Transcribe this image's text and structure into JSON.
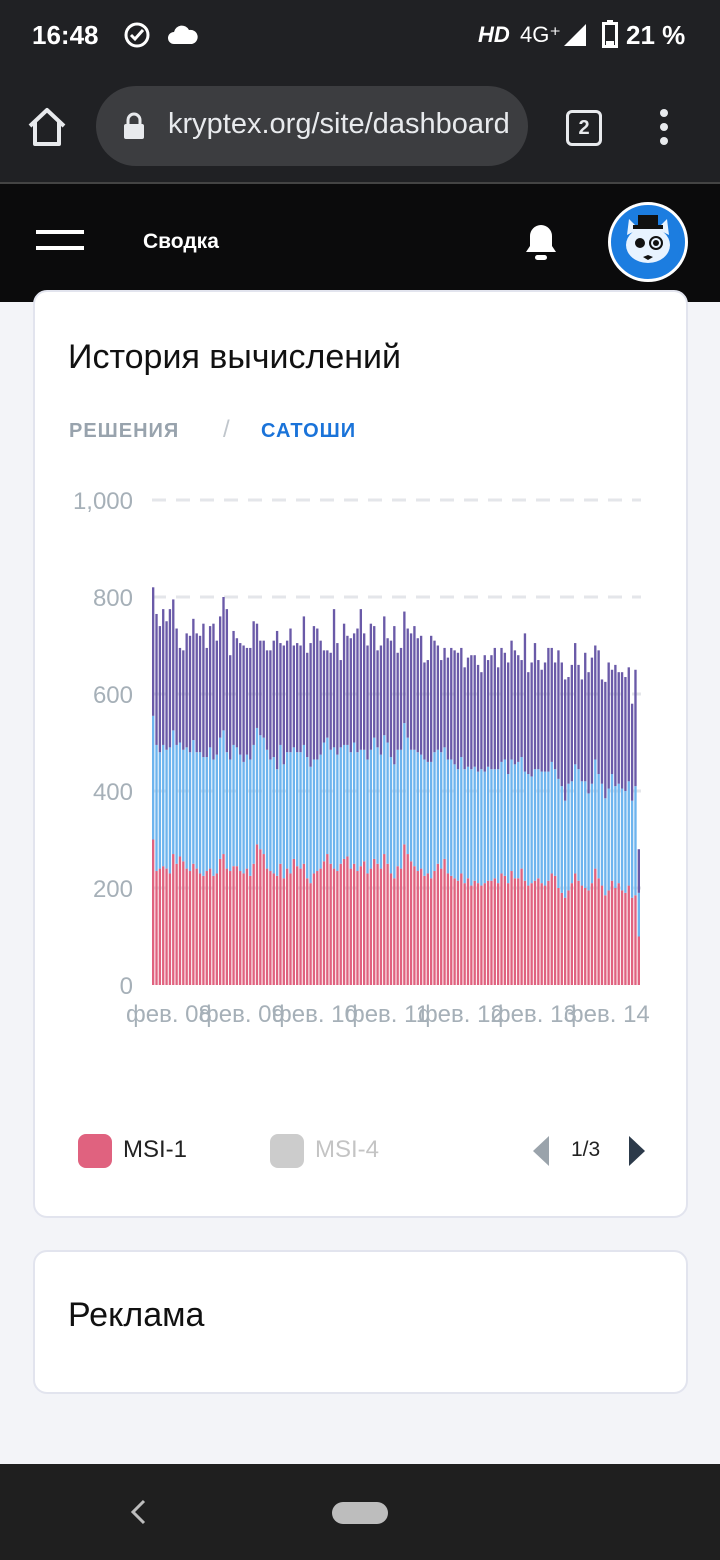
{
  "status_bar": {
    "time": "16:48",
    "hd": "HD",
    "network": "4G⁺",
    "battery": "21 %",
    "icons": [
      "check-circle-icon",
      "cloud-icon",
      "signal-icon",
      "battery-icon"
    ]
  },
  "browser": {
    "url": "kryptex.org/site/dashboard",
    "tab_count": "2"
  },
  "app_header": {
    "title": "Сводка"
  },
  "history_card": {
    "title": "История вычислений",
    "tabs": [
      {
        "label": "РЕШЕНИЯ",
        "active": false
      },
      {
        "label": "САТОШИ",
        "active": true
      }
    ],
    "separator": "/",
    "legend": [
      {
        "label": "MSI-1",
        "color": "#e0627f",
        "active": true
      },
      {
        "label": "MSI-4",
        "color": "#cccccc",
        "active": false
      }
    ],
    "pager": "1/3"
  },
  "chart_data": {
    "type": "bar",
    "stacked": true,
    "yticks": [
      "0",
      "200",
      "400",
      "600",
      "800",
      "1,000"
    ],
    "ylim": [
      0,
      1000
    ],
    "xticks": [
      "фев. 08",
      "фев. 09",
      "фев. 10",
      "фев. 11",
      "фев. 12",
      "фев. 13",
      "фев. 14"
    ],
    "grid": "dashed horizontal",
    "series": [
      {
        "name": "MSI-1",
        "color": "#e0627f",
        "values": [
          300,
          235,
          240,
          245,
          240,
          230,
          270,
          250,
          265,
          255,
          240,
          235,
          250,
          240,
          230,
          225,
          235,
          240,
          225,
          230,
          260,
          270,
          240,
          235,
          245,
          245,
          235,
          230,
          240,
          225,
          250,
          290,
          280,
          270,
          240,
          235,
          230,
          225,
          250,
          220,
          240,
          230,
          260,
          245,
          240,
          250,
          220,
          210,
          230,
          235,
          240,
          255,
          270,
          250,
          240,
          235,
          250,
          260,
          265,
          240,
          250,
          235,
          245,
          255,
          230,
          240,
          260,
          250,
          240,
          270,
          250,
          230,
          220,
          245,
          240,
          290,
          270,
          255,
          245,
          235,
          240,
          225,
          230,
          220,
          235,
          250,
          240,
          260,
          230,
          225,
          220,
          215,
          230,
          210,
          220,
          205,
          215,
          210,
          205,
          210,
          215,
          215,
          220,
          210,
          230,
          225,
          210,
          235,
          220,
          220,
          240,
          215,
          205,
          210,
          215,
          220,
          210,
          205,
          215,
          230,
          225,
          200,
          190,
          180,
          195,
          210,
          230,
          215,
          205,
          200,
          195,
          210,
          240,
          220,
          205,
          185,
          195,
          215,
          200,
          210,
          195,
          190,
          205,
          180,
          185,
          100
        ]
      },
      {
        "color": "#6db4ee",
        "values": [
          255,
          260,
          240,
          250,
          245,
          260,
          255,
          245,
          235,
          230,
          250,
          245,
          255,
          240,
          250,
          245,
          235,
          250,
          240,
          245,
          250,
          255,
          240,
          230,
          250,
          245,
          240,
          230,
          235,
          240,
          245,
          240,
          235,
          240,
          245,
          230,
          240,
          220,
          245,
          235,
          240,
          250,
          230,
          235,
          240,
          245,
          250,
          240,
          235,
          230,
          235,
          245,
          240,
          235,
          250,
          240,
          240,
          235,
          230,
          240,
          250,
          245,
          240,
          230,
          235,
          245,
          250,
          240,
          235,
          245,
          250,
          240,
          235,
          240,
          245,
          250,
          240,
          230,
          240,
          245,
          235,
          240,
          230,
          240,
          245,
          235,
          240,
          230,
          235,
          240,
          235,
          230,
          240,
          235,
          230,
          240,
          235,
          230,
          240,
          230,
          235,
          230,
          225,
          235,
          230,
          240,
          225,
          230,
          235,
          240,
          230,
          225,
          230,
          220,
          230,
          225,
          230,
          235,
          225,
          230,
          220,
          225,
          220,
          200,
          220,
          210,
          225,
          230,
          215,
          220,
          200,
          205,
          225,
          215,
          210,
          200,
          210,
          220,
          210,
          205,
          210,
          210,
          215,
          200,
          225,
          90
        ]
      },
      {
        "color": "#6a5aa8",
        "values": [
          265,
          270,
          260,
          280,
          265,
          285,
          270,
          240,
          195,
          205,
          235,
          240,
          250,
          245,
          240,
          275,
          225,
          250,
          280,
          235,
          250,
          275,
          295,
          215,
          235,
          225,
          230,
          240,
          220,
          230,
          255,
          215,
          195,
          200,
          205,
          225,
          240,
          285,
          210,
          245,
          230,
          255,
          210,
          225,
          220,
          265,
          215,
          255,
          275,
          270,
          235,
          190,
          180,
          200,
          285,
          230,
          180,
          250,
          225,
          235,
          225,
          255,
          290,
          240,
          235,
          260,
          230,
          200,
          225,
          245,
          215,
          240,
          285,
          200,
          210,
          230,
          225,
          240,
          255,
          235,
          245,
          200,
          210,
          260,
          230,
          215,
          190,
          205,
          210,
          230,
          235,
          240,
          225,
          210,
          225,
          235,
          230,
          220,
          200,
          240,
          220,
          235,
          250,
          210,
          235,
          220,
          230,
          245,
          235,
          220,
          200,
          285,
          210,
          235,
          260,
          225,
          210,
          225,
          255,
          235,
          220,
          265,
          255,
          250,
          220,
          240,
          250,
          215,
          210,
          265,
          250,
          260,
          235,
          255,
          215,
          240,
          260,
          215,
          250,
          230,
          240,
          235,
          235,
          200,
          240,
          90
        ]
      }
    ]
  }
}
